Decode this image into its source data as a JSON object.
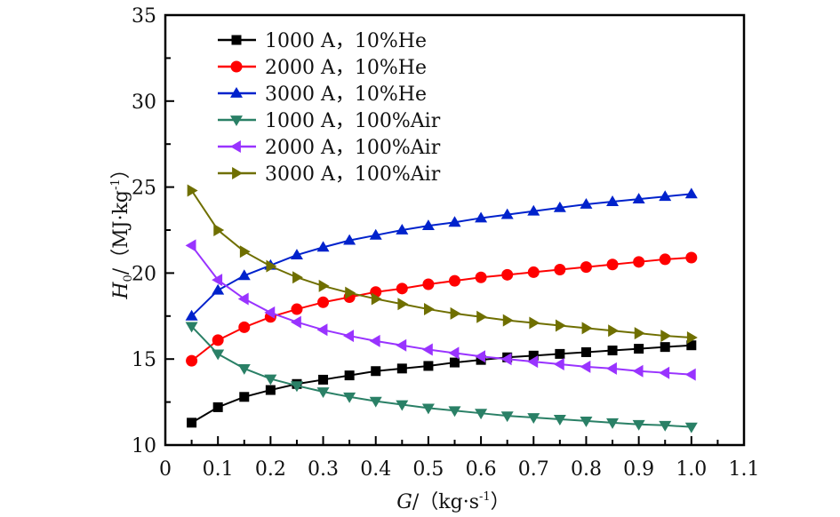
{
  "chart_data": {
    "type": "line",
    "title": "",
    "xlabel": "G/（kg·s⁻¹）",
    "xlabel_parts": {
      "var": "G",
      "unit": "/（kg·s",
      "exp": "-1",
      "close": "）"
    },
    "ylabel": "H₀/（MJ·kg⁻¹）",
    "ylabel_parts": {
      "var": "H",
      "sub": "0",
      "unit": "/（MJ·kg",
      "exp": "-1",
      "close": "）"
    },
    "xlim": [
      0,
      1.1
    ],
    "ylim": [
      10,
      35
    ],
    "x_ticks": [
      "0",
      "0.1",
      "0.2",
      "0.3",
      "0.4",
      "0.5",
      "0.6",
      "0.7",
      "0.8",
      "0.9",
      "1.0",
      "1.1"
    ],
    "y_ticks": [
      "10",
      "15",
      "20",
      "25",
      "30",
      "35"
    ],
    "grid": false,
    "legend_position": "top-left",
    "x": [
      0.05,
      0.1,
      0.15,
      0.2,
      0.25,
      0.3,
      0.35,
      0.4,
      0.45,
      0.5,
      0.55,
      0.6,
      0.65,
      0.7,
      0.75,
      0.8,
      0.85,
      0.9,
      0.95,
      1.0
    ],
    "series": [
      {
        "name": "1000 A，10%He",
        "color": "#000000",
        "marker": "square",
        "values": [
          11.3,
          12.2,
          12.8,
          13.2,
          13.55,
          13.8,
          14.05,
          14.3,
          14.45,
          14.6,
          14.8,
          14.95,
          15.1,
          15.2,
          15.3,
          15.4,
          15.5,
          15.6,
          15.7,
          15.8
        ]
      },
      {
        "name": "2000 A，10%He",
        "color": "#ff0000",
        "marker": "circle",
        "values": [
          14.9,
          16.1,
          16.85,
          17.45,
          17.9,
          18.3,
          18.6,
          18.9,
          19.1,
          19.35,
          19.55,
          19.75,
          19.9,
          20.05,
          20.2,
          20.35,
          20.5,
          20.65,
          20.8,
          20.9
        ]
      },
      {
        "name": "3000 A，10%He",
        "color": "#0022cc",
        "marker": "triangle-up",
        "values": [
          17.5,
          19.0,
          19.85,
          20.45,
          21.05,
          21.5,
          21.9,
          22.2,
          22.5,
          22.75,
          22.95,
          23.2,
          23.4,
          23.6,
          23.8,
          24.0,
          24.15,
          24.3,
          24.45,
          24.6
        ]
      },
      {
        "name": "1000 A，100%Air",
        "color": "#2a8066",
        "marker": "triangle-down",
        "values": [
          16.9,
          15.3,
          14.45,
          13.85,
          13.45,
          13.1,
          12.8,
          12.55,
          12.35,
          12.15,
          12.0,
          11.85,
          11.7,
          11.6,
          11.5,
          11.4,
          11.3,
          11.2,
          11.15,
          11.05
        ]
      },
      {
        "name": "2000 A，100%Air",
        "color": "#9933ff",
        "marker": "triangle-left",
        "values": [
          21.6,
          19.6,
          18.5,
          17.7,
          17.15,
          16.7,
          16.35,
          16.05,
          15.8,
          15.55,
          15.35,
          15.15,
          15.0,
          14.85,
          14.7,
          14.55,
          14.45,
          14.3,
          14.2,
          14.1
        ]
      },
      {
        "name": "3000 A，100%Air",
        "color": "#6f6f00",
        "marker": "triangle-right",
        "values": [
          24.8,
          22.5,
          21.25,
          20.4,
          19.75,
          19.25,
          18.85,
          18.5,
          18.2,
          17.9,
          17.65,
          17.45,
          17.25,
          17.1,
          16.95,
          16.8,
          16.65,
          16.5,
          16.35,
          16.25
        ]
      }
    ]
  }
}
